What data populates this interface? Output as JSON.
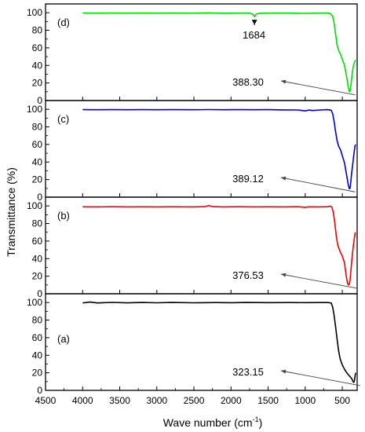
{
  "chart_data": {
    "type": "line",
    "xlabel": "Wave number (cm",
    "xlabel_sup": "-1",
    "xlabel_end": ")",
    "ylabel": "Transmittance (%)",
    "xlim": [
      4500,
      300
    ],
    "x_reversed": true,
    "x_ticks": [
      4500,
      4000,
      3500,
      3000,
      2500,
      2000,
      1500,
      1000,
      500
    ],
    "ylim": [
      0,
      110
    ],
    "y_ticks": [
      0,
      20,
      40,
      60,
      80,
      100
    ],
    "grid": false,
    "panels": [
      {
        "label": "(d)",
        "color": "#00dd00",
        "points": [
          [
            4000,
            99.6
          ],
          [
            3800,
            99.5
          ],
          [
            3600,
            99.7
          ],
          [
            3400,
            99.5
          ],
          [
            3200,
            99.6
          ],
          [
            3000,
            99.5
          ],
          [
            2800,
            99.6
          ],
          [
            2500,
            99.5
          ],
          [
            2300,
            99.8
          ],
          [
            2100,
            99.4
          ],
          [
            1900,
            99.5
          ],
          [
            1750,
            99.6
          ],
          [
            1700,
            98.0
          ],
          [
            1684,
            95.5
          ],
          [
            1660,
            98.4
          ],
          [
            1620,
            99.4
          ],
          [
            1400,
            99.6
          ],
          [
            1200,
            99.5
          ],
          [
            1000,
            99.3
          ],
          [
            800,
            99.5
          ],
          [
            700,
            99.7
          ],
          [
            660,
            99.0
          ],
          [
            630,
            96
          ],
          [
            610,
            88
          ],
          [
            590,
            75
          ],
          [
            570,
            63
          ],
          [
            550,
            57
          ],
          [
            520,
            52
          ],
          [
            500,
            47
          ],
          [
            470,
            40
          ],
          [
            440,
            26
          ],
          [
            420,
            15
          ],
          [
            405,
            10
          ],
          [
            395,
            11
          ],
          [
            385,
            17
          ],
          [
            375,
            24
          ],
          [
            365,
            32
          ],
          [
            350,
            40
          ],
          [
            330,
            45
          ],
          [
            320,
            46
          ]
        ],
        "annotations": [
          {
            "text": "1684",
            "x": 1684,
            "y": 95.5,
            "style": "arrow-down"
          },
          {
            "text": "388.30",
            "x": 388,
            "y": 10,
            "style": "arrow-line"
          }
        ]
      },
      {
        "label": "(c)",
        "color": "#0000cc",
        "points": [
          [
            4000,
            99.6
          ],
          [
            3800,
            99.5
          ],
          [
            3600,
            99.6
          ],
          [
            3400,
            99.5
          ],
          [
            3200,
            99.6
          ],
          [
            3000,
            99.5
          ],
          [
            2800,
            99.6
          ],
          [
            2500,
            99.5
          ],
          [
            2300,
            99.7
          ],
          [
            2100,
            99.5
          ],
          [
            1900,
            99.6
          ],
          [
            1700,
            99.5
          ],
          [
            1500,
            99.6
          ],
          [
            1300,
            99.4
          ],
          [
            1100,
            99.3
          ],
          [
            1000,
            98.2
          ],
          [
            950,
            99.2
          ],
          [
            900,
            98.6
          ],
          [
            800,
            99.3
          ],
          [
            700,
            99.6
          ],
          [
            650,
            99.0
          ],
          [
            630,
            95
          ],
          [
            610,
            86
          ],
          [
            590,
            74
          ],
          [
            570,
            64
          ],
          [
            550,
            58
          ],
          [
            520,
            53
          ],
          [
            500,
            47
          ],
          [
            470,
            39
          ],
          [
            440,
            24
          ],
          [
            420,
            14
          ],
          [
            405,
            9.5
          ],
          [
            395,
            10.5
          ],
          [
            385,
            18
          ],
          [
            375,
            27
          ],
          [
            360,
            37
          ],
          [
            345,
            48
          ],
          [
            330,
            58
          ],
          [
            320,
            60
          ]
        ],
        "annotations": [
          {
            "text": "389.12",
            "x": 389,
            "y": 9.5,
            "style": "arrow-line"
          }
        ]
      },
      {
        "label": "(b)",
        "color": "#ee0000",
        "points": [
          [
            4000,
            99.0
          ],
          [
            3800,
            98.9
          ],
          [
            3600,
            99.1
          ],
          [
            3400,
            98.9
          ],
          [
            3200,
            99.0
          ],
          [
            3000,
            98.9
          ],
          [
            2800,
            99.0
          ],
          [
            2500,
            98.9
          ],
          [
            2350,
            99.2
          ],
          [
            2300,
            100.5
          ],
          [
            2250,
            99.2
          ],
          [
            2100,
            98.9
          ],
          [
            1900,
            99.1
          ],
          [
            1700,
            98.9
          ],
          [
            1500,
            99.0
          ],
          [
            1300,
            98.9
          ],
          [
            1100,
            99.1
          ],
          [
            1000,
            98.5
          ],
          [
            950,
            99.0
          ],
          [
            800,
            98.9
          ],
          [
            700,
            99.1
          ],
          [
            660,
            99.8
          ],
          [
            640,
            98.5
          ],
          [
            620,
            92
          ],
          [
            600,
            80
          ],
          [
            580,
            65
          ],
          [
            560,
            55
          ],
          [
            530,
            48
          ],
          [
            500,
            43
          ],
          [
            470,
            35
          ],
          [
            450,
            22
          ],
          [
            430,
            12
          ],
          [
            415,
            10
          ],
          [
            405,
            11
          ],
          [
            395,
            16
          ],
          [
            385,
            26
          ],
          [
            370,
            40
          ],
          [
            355,
            52
          ],
          [
            340,
            62
          ],
          [
            330,
            68
          ],
          [
            325,
            70
          ]
        ],
        "annotations": [
          {
            "text": "376.53",
            "x": 376,
            "y": 10,
            "style": "arrow-line"
          }
        ]
      },
      {
        "label": "(a)",
        "color": "#000000",
        "points": [
          [
            4000,
            99.5
          ],
          [
            3900,
            100.5
          ],
          [
            3800,
            99.5
          ],
          [
            3600,
            100.2
          ],
          [
            3400,
            99.6
          ],
          [
            3200,
            100.1
          ],
          [
            3000,
            99.7
          ],
          [
            2800,
            100.1
          ],
          [
            2500,
            99.7
          ],
          [
            2200,
            100.0
          ],
          [
            2000,
            99.8
          ],
          [
            1800,
            100.1
          ],
          [
            1500,
            99.9
          ],
          [
            1200,
            100.0
          ],
          [
            1000,
            99.9
          ],
          [
            800,
            100.0
          ],
          [
            700,
            100.0
          ],
          [
            650,
            99.5
          ],
          [
            630,
            95
          ],
          [
            610,
            85
          ],
          [
            590,
            72
          ],
          [
            570,
            58
          ],
          [
            550,
            45
          ],
          [
            530,
            36
          ],
          [
            500,
            29
          ],
          [
            470,
            24
          ],
          [
            440,
            20
          ],
          [
            410,
            17
          ],
          [
            390,
            15
          ],
          [
            370,
            13
          ],
          [
            355,
            10
          ],
          [
            345,
            9
          ],
          [
            335,
            12
          ],
          [
            325,
            18
          ],
          [
            318,
            20
          ]
        ],
        "annotations": [
          {
            "text": "323.15",
            "x": 323,
            "y": 9,
            "style": "arrow-line"
          }
        ]
      }
    ]
  }
}
